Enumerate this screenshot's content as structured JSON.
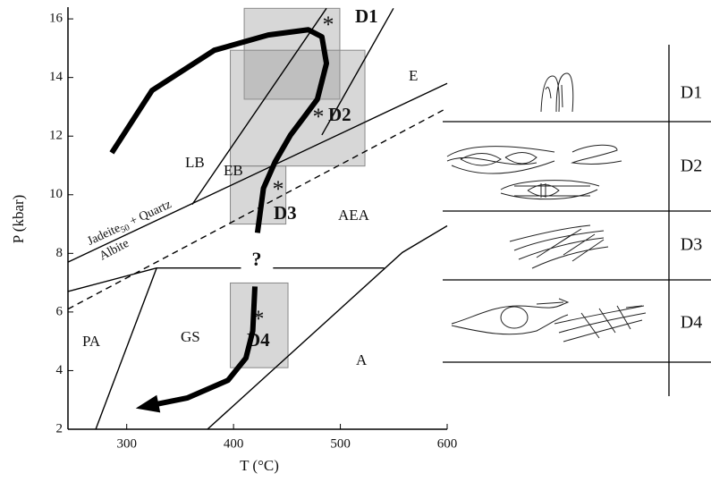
{
  "chart_data": {
    "type": "pt-path",
    "xlabel": "T (°C)",
    "ylabel": "P (kbar)",
    "xlim": [
      245,
      600
    ],
    "ylim": [
      2,
      16.4
    ],
    "xticks": [
      300,
      400,
      500,
      600
    ],
    "yticks": [
      2,
      4,
      6,
      8,
      10,
      12,
      14,
      16
    ],
    "boundaries": [
      {
        "style": "solid",
        "x": [
          245,
          600
        ],
        "y": [
          7.7,
          13.8
        ]
      },
      {
        "style": "dashed",
        "x": [
          245,
          600
        ],
        "y": [
          6.1,
          12.96
        ]
      },
      {
        "style": "solid",
        "x": [
          245,
          328,
          407
        ],
        "y": [
          6.7,
          7.5,
          7.5
        ]
      },
      {
        "style": "solid",
        "x": [
          437,
          541
        ],
        "y": [
          7.5,
          7.5
        ]
      },
      {
        "style": "solid",
        "x": [
          271,
          328
        ],
        "y": [
          2,
          7.5
        ]
      },
      {
        "style": "solid",
        "x": [
          375.6,
          558,
          600
        ],
        "y": [
          2,
          8.03,
          8.94
        ]
      },
      {
        "style": "solid",
        "x": [
          361.3,
          487
        ],
        "y": [
          9.67,
          16.36
        ]
      },
      {
        "style": "solid",
        "x": [
          549.7,
          482.7
        ],
        "y": [
          16.36,
          12.04
        ]
      }
    ],
    "boxes": [
      {
        "x": [
          410,
          499.5
        ],
        "y": [
          13.26,
          16.36
        ]
      },
      {
        "x": [
          397,
          523
        ],
        "y": [
          10.98,
          14.93
        ]
      },
      {
        "x": [
          397,
          449
        ],
        "y": [
          9.0,
          10.98
        ]
      },
      {
        "x": [
          397,
          451
        ],
        "y": [
          4.1,
          6.99
        ]
      }
    ],
    "path": {
      "x": [
        286,
        323.7,
        382,
        432.5,
        470,
        482.7,
        487,
        478.5,
        466,
        453.4,
        439,
        428,
        422.4,
        420,
        420,
        418,
        411.6,
        394.8,
        357,
        315
      ],
      "y": [
        11.43,
        13.56,
        14.93,
        15.45,
        15.63,
        15.39,
        14.48,
        13.26,
        12.65,
        12.04,
        11.13,
        10.22,
        8.7,
        null,
        6.87,
        5.35,
        4.43,
        3.67,
        3.07,
        2.76
      ]
    },
    "fields": [
      "LB",
      "EB",
      "E",
      "AEA",
      "GS",
      "PA",
      "A"
    ],
    "stages": [
      "D1",
      "D2",
      "D3",
      "D4"
    ],
    "marker": "*",
    "question": "?",
    "reactions": {
      "albite": "Albite",
      "jadeite": "Jadeite",
      "sub": "50",
      "quartz": " + Quartz"
    }
  },
  "table": {
    "rows": [
      "D1",
      "D2",
      "D3",
      "D4"
    ]
  }
}
